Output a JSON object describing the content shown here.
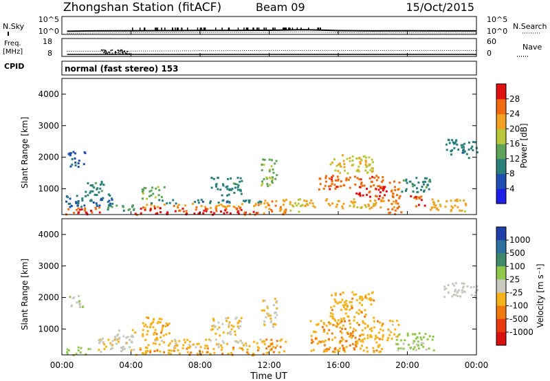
{
  "header": {
    "station": "Zhongshan Station (fitACF)",
    "beam": "Beam 09",
    "date": "15/Oct/2015"
  },
  "noise_panel": {
    "left_label": "N.Sky",
    "left_ticks": [
      "10^5",
      "10^0"
    ],
    "right_label": "N.Search",
    "right_ticks": [
      "10^5",
      "10^0"
    ]
  },
  "freq_panel": {
    "left_label_line1": "Freq.",
    "left_label_line2": "[MHz]",
    "left_ticks": [
      "18",
      "8"
    ],
    "right_label": "Nave",
    "right_ticks": [
      "60",
      "0"
    ]
  },
  "cpid": {
    "label": "CPID",
    "text": "normal (fast stereo) 153"
  },
  "x_axis": {
    "title": "Time UT",
    "ticks": [
      "00:00",
      "04:00",
      "08:00",
      "12:00",
      "16:00",
      "20:00",
      "00:00"
    ]
  },
  "y_axis": {
    "title": "Slant Range [km]",
    "ticks": [
      "1000",
      "2000",
      "3000",
      "4000"
    ]
  },
  "power_colorbar": {
    "title": "Power [dB]",
    "labels": [
      "4",
      "8",
      "12",
      "16",
      "20",
      "24",
      "28"
    ],
    "colors": [
      "#1e1ee6",
      "#1f4fb0",
      "#2a7f7a",
      "#5fa35a",
      "#b8c83a",
      "#f2a020",
      "#f06a10",
      "#e01010"
    ]
  },
  "velocity_colorbar": {
    "title": "Velocity [m s⁻¹]",
    "labels": [
      "1000",
      "500",
      "100",
      "25",
      "-25",
      "-100",
      "-500",
      "-1000"
    ],
    "colors": [
      "#1f3ea8",
      "#2d6f9e",
      "#3f8a6a",
      "#8fc84a",
      "#c8c8c0",
      "#f5b21a",
      "#f07a10",
      "#e83a10",
      "#d81010"
    ]
  },
  "chart_data": {
    "type": "heatmap",
    "title": "Zhongshan Station (fitACF)  Beam 09  15/Oct/2015",
    "xlabel": "Time UT",
    "ylabel": "Slant Range [km]",
    "x_range_hours": [
      0,
      24
    ],
    "y_range_km": [
      180,
      4500
    ],
    "panels": [
      {
        "name": "Power [dB]",
        "scale": [
          0,
          30
        ],
        "blobs": [
          {
            "t0": 0.2,
            "t1": 2.3,
            "r0": 200,
            "r1": 450,
            "v": 26
          },
          {
            "t0": 0.2,
            "t1": 3.0,
            "r0": 450,
            "r1": 900,
            "v": 8
          },
          {
            "t0": 0.3,
            "t1": 1.3,
            "r0": 1700,
            "r1": 2200,
            "v": 6
          },
          {
            "t0": 1.2,
            "t1": 2.4,
            "r0": 900,
            "r1": 1300,
            "v": 10
          },
          {
            "t0": 2.4,
            "t1": 4.2,
            "r0": 300,
            "r1": 500,
            "v": 12
          },
          {
            "t0": 4.2,
            "t1": 11.5,
            "r0": 200,
            "r1": 420,
            "v": 27
          },
          {
            "t0": 4.5,
            "t1": 11.5,
            "r0": 420,
            "r1": 560,
            "v": 22
          },
          {
            "t0": 5.0,
            "t1": 11.5,
            "r0": 560,
            "r1": 680,
            "v": 9
          },
          {
            "t0": 4.6,
            "t1": 6.0,
            "r0": 700,
            "r1": 1100,
            "v": 14
          },
          {
            "t0": 8.6,
            "t1": 10.4,
            "r0": 800,
            "r1": 1400,
            "v": 10
          },
          {
            "t0": 11.6,
            "t1": 13.0,
            "r0": 200,
            "r1": 700,
            "v": 22
          },
          {
            "t0": 11.5,
            "t1": 12.4,
            "r0": 1100,
            "r1": 2000,
            "v": 14
          },
          {
            "t0": 13.0,
            "t1": 14.3,
            "r0": 300,
            "r1": 700,
            "v": 18
          },
          {
            "t0": 14.3,
            "t1": 18.6,
            "r0": 400,
            "r1": 700,
            "v": 20
          },
          {
            "t0": 14.8,
            "t1": 18.6,
            "r0": 1000,
            "r1": 1450,
            "v": 25
          },
          {
            "t0": 15.5,
            "t1": 18.0,
            "r0": 1500,
            "r1": 2100,
            "v": 18
          },
          {
            "t0": 17.0,
            "t1": 18.8,
            "r0": 700,
            "r1": 1100,
            "v": 27
          },
          {
            "t0": 18.8,
            "t1": 19.6,
            "r0": 200,
            "r1": 1300,
            "v": 24
          },
          {
            "t0": 19.6,
            "t1": 21.4,
            "r0": 900,
            "r1": 1400,
            "v": 10
          },
          {
            "t0": 20.0,
            "t1": 21.0,
            "r0": 450,
            "r1": 800,
            "v": 26
          },
          {
            "t0": 21.2,
            "t1": 23.4,
            "r0": 300,
            "r1": 700,
            "v": 20
          },
          {
            "t0": 22.2,
            "t1": 24.0,
            "r0": 2000,
            "r1": 2600,
            "v": 9
          }
        ]
      },
      {
        "name": "Velocity [m s⁻¹]",
        "scale": [
          -1000,
          1000
        ],
        "blobs": [
          {
            "t0": 0.2,
            "t1": 1.6,
            "r0": 200,
            "r1": 450,
            "v": 200
          },
          {
            "t0": 0.3,
            "t1": 1.3,
            "r0": 1700,
            "r1": 2100,
            "v": 0
          },
          {
            "t0": 2.0,
            "t1": 4.2,
            "r0": 300,
            "r1": 1000,
            "v": -60
          },
          {
            "t0": 4.2,
            "t1": 11.5,
            "r0": 200,
            "r1": 450,
            "v": -300
          },
          {
            "t0": 4.6,
            "t1": 11.5,
            "r0": 450,
            "r1": 700,
            "v": -160
          },
          {
            "t0": 4.6,
            "t1": 6.2,
            "r0": 700,
            "r1": 1400,
            "v": -250
          },
          {
            "t0": 8.6,
            "t1": 10.4,
            "r0": 800,
            "r1": 1400,
            "v": -120
          },
          {
            "t0": 11.5,
            "t1": 13.0,
            "r0": 200,
            "r1": 700,
            "v": -300
          },
          {
            "t0": 11.5,
            "t1": 12.4,
            "r0": 1100,
            "r1": 2000,
            "v": -100
          },
          {
            "t0": 14.3,
            "t1": 18.8,
            "r0": 300,
            "r1": 1300,
            "v": -300
          },
          {
            "t0": 15.5,
            "t1": 18.0,
            "r0": 1300,
            "r1": 2200,
            "v": -250
          },
          {
            "t0": 18.8,
            "t1": 19.5,
            "r0": 700,
            "r1": 1300,
            "v": -200
          },
          {
            "t0": 19.2,
            "t1": 21.5,
            "r0": 350,
            "r1": 900,
            "v": 150
          },
          {
            "t0": 22.0,
            "t1": 24.0,
            "r0": 2000,
            "r1": 2500,
            "v": 0
          }
        ]
      }
    ],
    "noise_series": {
      "name": "N.Sky",
      "x_hours": [
        0.3,
        2,
        4,
        6,
        8,
        10,
        12,
        13,
        14,
        15,
        16,
        18,
        20,
        22,
        24
      ],
      "values_log10": [
        0.6,
        0.7,
        0.75,
        0.8,
        0.85,
        0.85,
        0.9,
        1.0,
        1.1,
        0.95,
        0.8,
        0.7,
        0.75,
        0.7,
        0.7
      ]
    },
    "frequency_series": {
      "name": "Freq. [MHz]",
      "x_hours": [
        0.3,
        2.5,
        3,
        3.5,
        4,
        8,
        12,
        16,
        20,
        24
      ],
      "values": [
        10.5,
        10.5,
        9.5,
        9.8,
        10.6,
        10.8,
        11.0,
        11.0,
        11.0,
        11.0
      ]
    },
    "nave_series": {
      "name": "Nave",
      "x_hours": [
        0.3,
        24
      ],
      "values": [
        27,
        27
      ]
    }
  }
}
